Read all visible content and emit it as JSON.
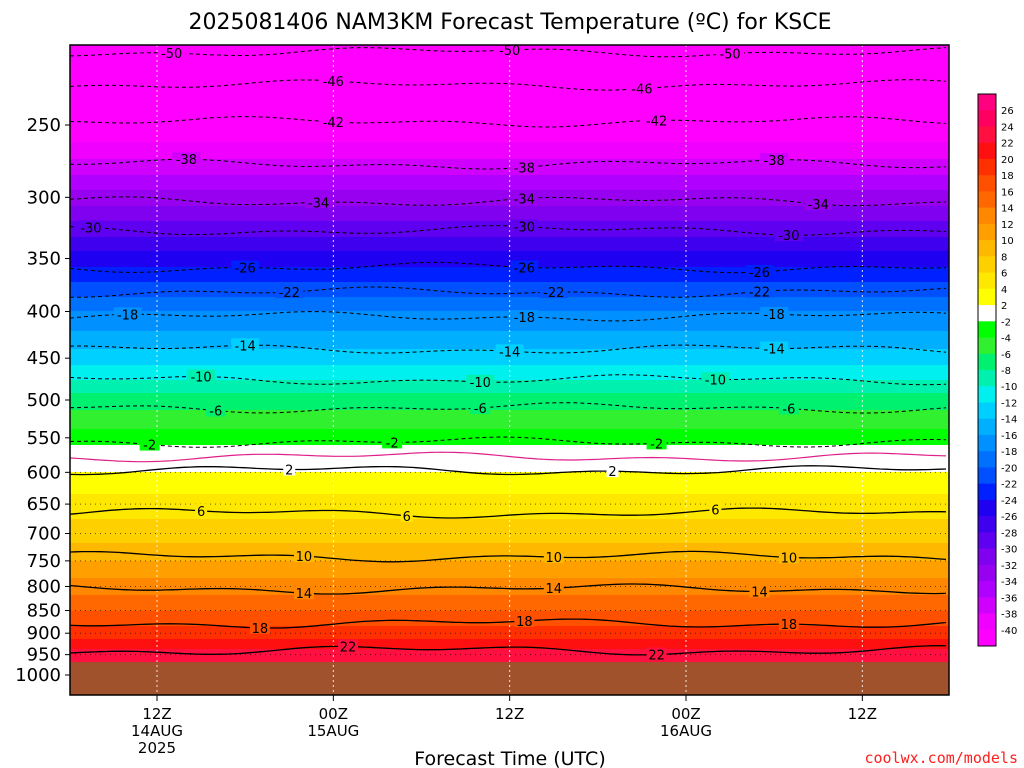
{
  "chart_data": {
    "type": "heatmap",
    "title": "2025081406 NAM3KM Forecast Temperature (ºC) for KSCE",
    "xlabel": "Forecast Time (UTC)",
    "ylabel": "",
    "credit": "coolwx.com/models",
    "ylim": [
      1000,
      200
    ],
    "y_scale": "log-pressure",
    "y_ticks": [
      250,
      300,
      350,
      400,
      450,
      500,
      550,
      600,
      650,
      700,
      750,
      800,
      850,
      900,
      950,
      1000
    ],
    "x_range_hours": [
      -6,
      45
    ],
    "x_ticks": [
      {
        "hour": 0,
        "lines": [
          "12Z",
          "14AUG",
          "2025"
        ]
      },
      {
        "hour": 12,
        "lines": [
          "00Z",
          "15AUG"
        ]
      },
      {
        "hour": 24,
        "lines": [
          "12Z"
        ]
      },
      {
        "hour": 36,
        "lines": [
          "00Z",
          "16AUG"
        ]
      },
      {
        "hour": 48,
        "lines": [
          "12Z"
        ]
      }
    ],
    "ground_pressure": 968,
    "ground_color": "#a0522d",
    "profile": [
      {
        "p": 1000,
        "t": 25
      },
      {
        "p": 950,
        "t": 23
      },
      {
        "p": 900,
        "t": 19
      },
      {
        "p": 850,
        "t": 16
      },
      {
        "p": 800,
        "t": 13
      },
      {
        "p": 750,
        "t": 10
      },
      {
        "p": 700,
        "t": 7
      },
      {
        "p": 650,
        "t": 5
      },
      {
        "p": 600,
        "t": 2
      },
      {
        "p": 577,
        "t": -0.5
      },
      {
        "p": 560,
        "t": -2
      },
      {
        "p": 550,
        "t": -3
      },
      {
        "p": 500,
        "t": -7
      },
      {
        "p": 450,
        "t": -13
      },
      {
        "p": 400,
        "t": -18
      },
      {
        "p": 350,
        "t": -25
      },
      {
        "p": 300,
        "t": -33
      },
      {
        "p": 250,
        "t": -42
      },
      {
        "p": 200,
        "t": -52
      }
    ],
    "contours": [
      {
        "temp": -50,
        "style": "dashed",
        "p": 208,
        "labels": [
          {
            "h": 1,
            "text": "-50"
          },
          {
            "h": 24,
            "text": "-50"
          },
          {
            "h": 39,
            "text": "-50"
          }
        ]
      },
      {
        "temp": -46,
        "style": "dashed",
        "p": 226,
        "labels": [
          {
            "h": 12,
            "text": "-46"
          },
          {
            "h": 33,
            "text": "-46"
          }
        ]
      },
      {
        "temp": -42,
        "style": "dashed",
        "p": 248,
        "labels": [
          {
            "h": 12,
            "text": "-42"
          },
          {
            "h": 34,
            "text": "-42"
          }
        ]
      },
      {
        "temp": -38,
        "style": "dashed",
        "p": 276,
        "labels": [
          {
            "h": 2,
            "text": "-38"
          },
          {
            "h": 25,
            "text": "-38"
          },
          {
            "h": 42,
            "text": "-38"
          }
        ]
      },
      {
        "temp": -34,
        "style": "dashed",
        "p": 303,
        "labels": [
          {
            "h": 11,
            "text": "-34"
          },
          {
            "h": 25,
            "text": "-34"
          },
          {
            "h": 45,
            "text": "-34"
          }
        ]
      },
      {
        "temp": -30,
        "style": "dashed",
        "p": 326,
        "labels": [
          {
            "h": -4.5,
            "text": "-30"
          },
          {
            "h": 25,
            "text": "-30"
          },
          {
            "h": 43,
            "text": "-30"
          }
        ]
      },
      {
        "temp": -26,
        "style": "dashed",
        "p": 358,
        "labels": [
          {
            "h": 6,
            "text": "-26"
          },
          {
            "h": 25,
            "text": "-26"
          },
          {
            "h": 41,
            "text": "-26"
          }
        ]
      },
      {
        "temp": -22,
        "style": "dashed",
        "p": 381,
        "labels": [
          {
            "h": 9,
            "text": "-22"
          },
          {
            "h": 27,
            "text": "-22"
          },
          {
            "h": 41,
            "text": "-22"
          }
        ]
      },
      {
        "temp": -18,
        "style": "dashed",
        "p": 405,
        "labels": [
          {
            "h": -2,
            "text": "-18"
          },
          {
            "h": 25,
            "text": "-18"
          },
          {
            "h": 42,
            "text": "-18"
          }
        ]
      },
      {
        "temp": -14,
        "style": "dashed",
        "p": 440,
        "labels": [
          {
            "h": 6,
            "text": "-14"
          },
          {
            "h": 24,
            "text": "-14"
          },
          {
            "h": 42,
            "text": "-14"
          }
        ]
      },
      {
        "temp": -10,
        "style": "dashed",
        "p": 475,
        "labels": [
          {
            "h": 3,
            "text": "-10"
          },
          {
            "h": 22,
            "text": "-10"
          },
          {
            "h": 38,
            "text": "-10"
          }
        ]
      },
      {
        "temp": -6,
        "style": "dashed",
        "p": 510,
        "labels": [
          {
            "h": 4,
            "text": "-6"
          },
          {
            "h": 22,
            "text": "-6"
          },
          {
            "h": 43,
            "text": "-6"
          }
        ]
      },
      {
        "temp": -2,
        "style": "dashed",
        "p": 556,
        "labels": [
          {
            "h": -0.5,
            "text": "-2"
          },
          {
            "h": 16,
            "text": "-2"
          },
          {
            "h": 34,
            "text": "-2"
          }
        ]
      },
      {
        "temp": 0,
        "style": "magenta",
        "p": 577,
        "labels": []
      },
      {
        "temp": 2,
        "style": "solid",
        "p": 597,
        "labels": [
          {
            "h": 9,
            "text": "2"
          },
          {
            "h": 31,
            "text": "2"
          }
        ]
      },
      {
        "temp": 6,
        "style": "solid",
        "p": 665,
        "labels": [
          {
            "h": 3,
            "text": "6"
          },
          {
            "h": 17,
            "text": "6"
          },
          {
            "h": 38,
            "text": "6"
          }
        ]
      },
      {
        "temp": 10,
        "style": "solid",
        "p": 742,
        "labels": [
          {
            "h": 10,
            "text": "10"
          },
          {
            "h": 27,
            "text": "10"
          },
          {
            "h": 43,
            "text": "10"
          }
        ]
      },
      {
        "temp": 14,
        "style": "solid",
        "p": 805,
        "labels": [
          {
            "h": 10,
            "text": "14"
          },
          {
            "h": 27,
            "text": "14"
          },
          {
            "h": 41,
            "text": "14"
          }
        ]
      },
      {
        "temp": 18,
        "style": "solid",
        "p": 878,
        "labels": [
          {
            "h": 7,
            "text": "18"
          },
          {
            "h": 25,
            "text": "18"
          },
          {
            "h": 43,
            "text": "18"
          }
        ]
      },
      {
        "temp": 22,
        "style": "solid",
        "p": 940,
        "labels": [
          {
            "h": 13,
            "text": "22"
          },
          {
            "h": 34,
            "text": "22"
          }
        ]
      }
    ],
    "legend": {
      "labels": [
        "26",
        "24",
        "22",
        "20",
        "18",
        "16",
        "14",
        "12",
        "10",
        "8",
        "6",
        "4",
        "2",
        "-2",
        "-4",
        "-6",
        "-8",
        "-10",
        "-12",
        "-14",
        "-16",
        "-18",
        "-20",
        "-22",
        "-24",
        "-26",
        "-28",
        "-30",
        "-32",
        "-34",
        "-36",
        "-38",
        "-40"
      ],
      "colors": [
        "#ff0080",
        "#ff0060",
        "#ff1040",
        "#ff1010",
        "#ff3000",
        "#ff5000",
        "#ff6800",
        "#ff8800",
        "#ffa000",
        "#ffb800",
        "#ffd000",
        "#ffe800",
        "#ffff00",
        "#ffffff",
        "#00ff00",
        "#30f030",
        "#00f070",
        "#00f0b0",
        "#00f0f0",
        "#00d0ff",
        "#00b0ff",
        "#0090ff",
        "#0070ff",
        "#0050ff",
        "#0020ff",
        "#2000f0",
        "#4000f0",
        "#6000f0",
        "#8000f0",
        "#9800f0",
        "#b000ff",
        "#d000ff",
        "#f000ff",
        "#ff00ff"
      ]
    }
  }
}
